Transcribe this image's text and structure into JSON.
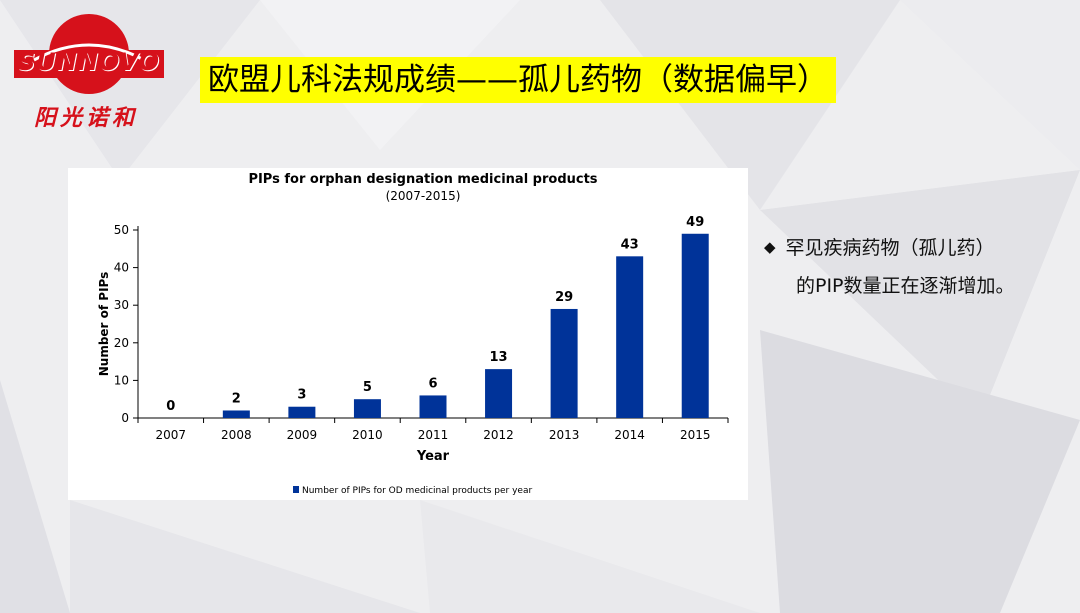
{
  "logo": {
    "name": "SUNNOVO",
    "chinese_name": "阳光诺和"
  },
  "slide": {
    "title": "欧盟儿科法规成绩——孤儿药物（数据偏早）"
  },
  "bullet": {
    "marker": "◆",
    "line1": "罕见疾病药物（孤儿药）",
    "line2": "的PIP数量正在逐渐增加。"
  },
  "chart_data": {
    "type": "bar",
    "title": "PIPs for orphan designation medicinal products",
    "subtitle": "(2007-2015)",
    "xlabel": "Year",
    "ylabel": "Number of PIPs",
    "categories": [
      "2007",
      "2008",
      "2009",
      "2010",
      "2011",
      "2012",
      "2013",
      "2014",
      "2015"
    ],
    "values": [
      0,
      2,
      3,
      5,
      6,
      13,
      29,
      43,
      49
    ],
    "ylim": [
      0,
      50
    ],
    "yticks": [
      0,
      10,
      20,
      30,
      40,
      50
    ],
    "series_name": "Number of PIPs for OD medicinal products per year",
    "bar_color": "#003399",
    "legend_position": "bottom",
    "grid": false
  }
}
